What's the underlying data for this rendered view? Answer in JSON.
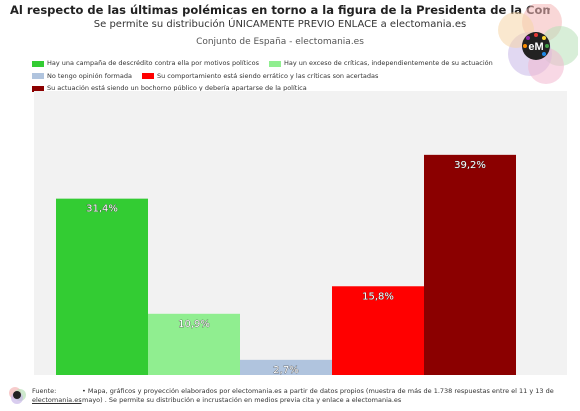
{
  "header": {
    "title": "Al respecto de las últimas polémicas en torno a la figura de la Presidenta de la Comunidad de Madrid...",
    "subtitle": "Se permite su distribución ÚNICAMENTE PREVIO ENLACE a electomania.es",
    "subtitle2": "Conjunto de España - electomania.es"
  },
  "logo": {
    "text": "eM"
  },
  "chart_data": {
    "type": "bar",
    "title": "Al respecto de las últimas polémicas en torno a la figura de la Presidenta de la Comunidad de Madrid...",
    "xlabel": "",
    "ylabel": "",
    "ylim": [
      0,
      45
    ],
    "grid": false,
    "legend_position": "top",
    "series": [
      {
        "name": "Hay una campaña de descrédito contra ella por motivos políticos",
        "value": 31.4,
        "label": "31,4%",
        "color": "#33cc33"
      },
      {
        "name": "Hay un exceso de críticas, independientemente de su actuación",
        "value": 10.9,
        "label": "10,9%",
        "color": "#90ee90"
      },
      {
        "name": "No tengo opinión formada",
        "value": 2.7,
        "label": "2,7%",
        "color": "#b0c4de"
      },
      {
        "name": "Su comportamiento está siendo errático y las críticas son acertadas",
        "value": 15.8,
        "label": "15,8%",
        "color": "#ff0000"
      },
      {
        "name": "Su actuación está siendo un bochorno público y debería apartarse de la política",
        "value": 39.2,
        "label": "39,2%",
        "color": "#8b0000"
      }
    ]
  },
  "footer": {
    "source_label": "Fuente:",
    "source_link": "electomania.es",
    "note": "• Mapa, gráficos y proyección elaborados por electomania.es a partir de datos propios (muestra de más de 1.738 respuestas entre el 11 y 13 de mayo) . Se permite su distribución e incrustación en medios previa cita y enlace a electomania.es"
  }
}
